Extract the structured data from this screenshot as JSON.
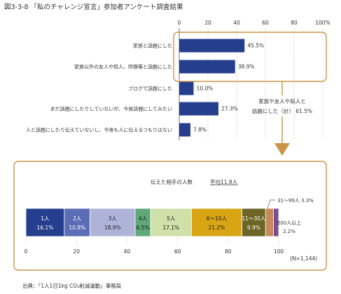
{
  "figure": {
    "title": "図3-3-8 「私のチャレンジ宣言」参加者アンケート調査結果",
    "source": "出典：「1人1日1kg CO₂削減運動」事務局",
    "colors": {
      "bar": "#263e8e",
      "frame": "#c99548",
      "arrow": "#c99548",
      "grid": "#bdbdbd",
      "background": "#ffffff"
    }
  },
  "chart_data": [
    {
      "type": "bar",
      "orientation": "horizontal",
      "categories": [
        "家族と話題にした",
        "家族以外の友人や知人、同僚等と話題にした",
        "ブログで話題にした",
        "まだ話題にしたりしていないが、今後話題にしてみたい",
        "人と話題にしたり伝えていないし、今後も人に伝えるつもりはない"
      ],
      "values": [
        45.5,
        38.9,
        10.0,
        27.3,
        7.8
      ],
      "value_labels": [
        "45.5%",
        "38.9%",
        "10.0%",
        "27.3%",
        "7.8%"
      ],
      "xlim": [
        0,
        100
      ],
      "xticks": [
        0,
        20,
        40,
        60,
        80,
        100
      ],
      "xtick_labels": [
        "0",
        "20",
        "40",
        "60",
        "80",
        "100%"
      ],
      "grid": true,
      "annotation": {
        "line1": "家族や友人や知人と",
        "line2": "話題にした（計） 61.5%"
      }
    },
    {
      "type": "stacked_bar",
      "orientation": "horizontal",
      "title": "伝えた相手の人数",
      "subtitle": "平均11.8人",
      "segments": [
        {
          "label": "1人",
          "value": 16.1,
          "text": "16.1%",
          "color": "#263e8e"
        },
        {
          "label": "2人",
          "value": 10.8,
          "text": "10.8%",
          "color": "#5b6db5"
        },
        {
          "label": "3人",
          "value": 18.9,
          "text": "18.9%",
          "color": "#aeb3d8"
        },
        {
          "label": "4人",
          "value": 6.5,
          "text": "6.5%",
          "color": "#5fa879"
        },
        {
          "label": "5人",
          "value": 17.1,
          "text": "17.1%",
          "color": "#cfe0a8"
        },
        {
          "label": "6～10人",
          "value": 21.2,
          "text": "21.2%",
          "color": "#d9a515"
        },
        {
          "label": "11～30人",
          "value": 9.9,
          "text": "9.9%",
          "color": "#6c6525"
        },
        {
          "label": "31～99人",
          "value": 3.3,
          "text": "3.3%",
          "color": "#c48a5a"
        },
        {
          "label": "100人以上",
          "value": 2.2,
          "text": "2.2%",
          "color": "#7a4d93"
        }
      ],
      "callouts": {
        "seg31": "31～99人 3.3%",
        "seg100_line1": "100人以上",
        "seg100_line2": "2.2%"
      },
      "xlim": [
        0,
        100
      ],
      "xticks": [
        0,
        20,
        40,
        60,
        80,
        100
      ],
      "xtick_labels": [
        "0",
        "20",
        "40",
        "60",
        "80",
        "100"
      ],
      "note": "(N=1,144)"
    }
  ]
}
